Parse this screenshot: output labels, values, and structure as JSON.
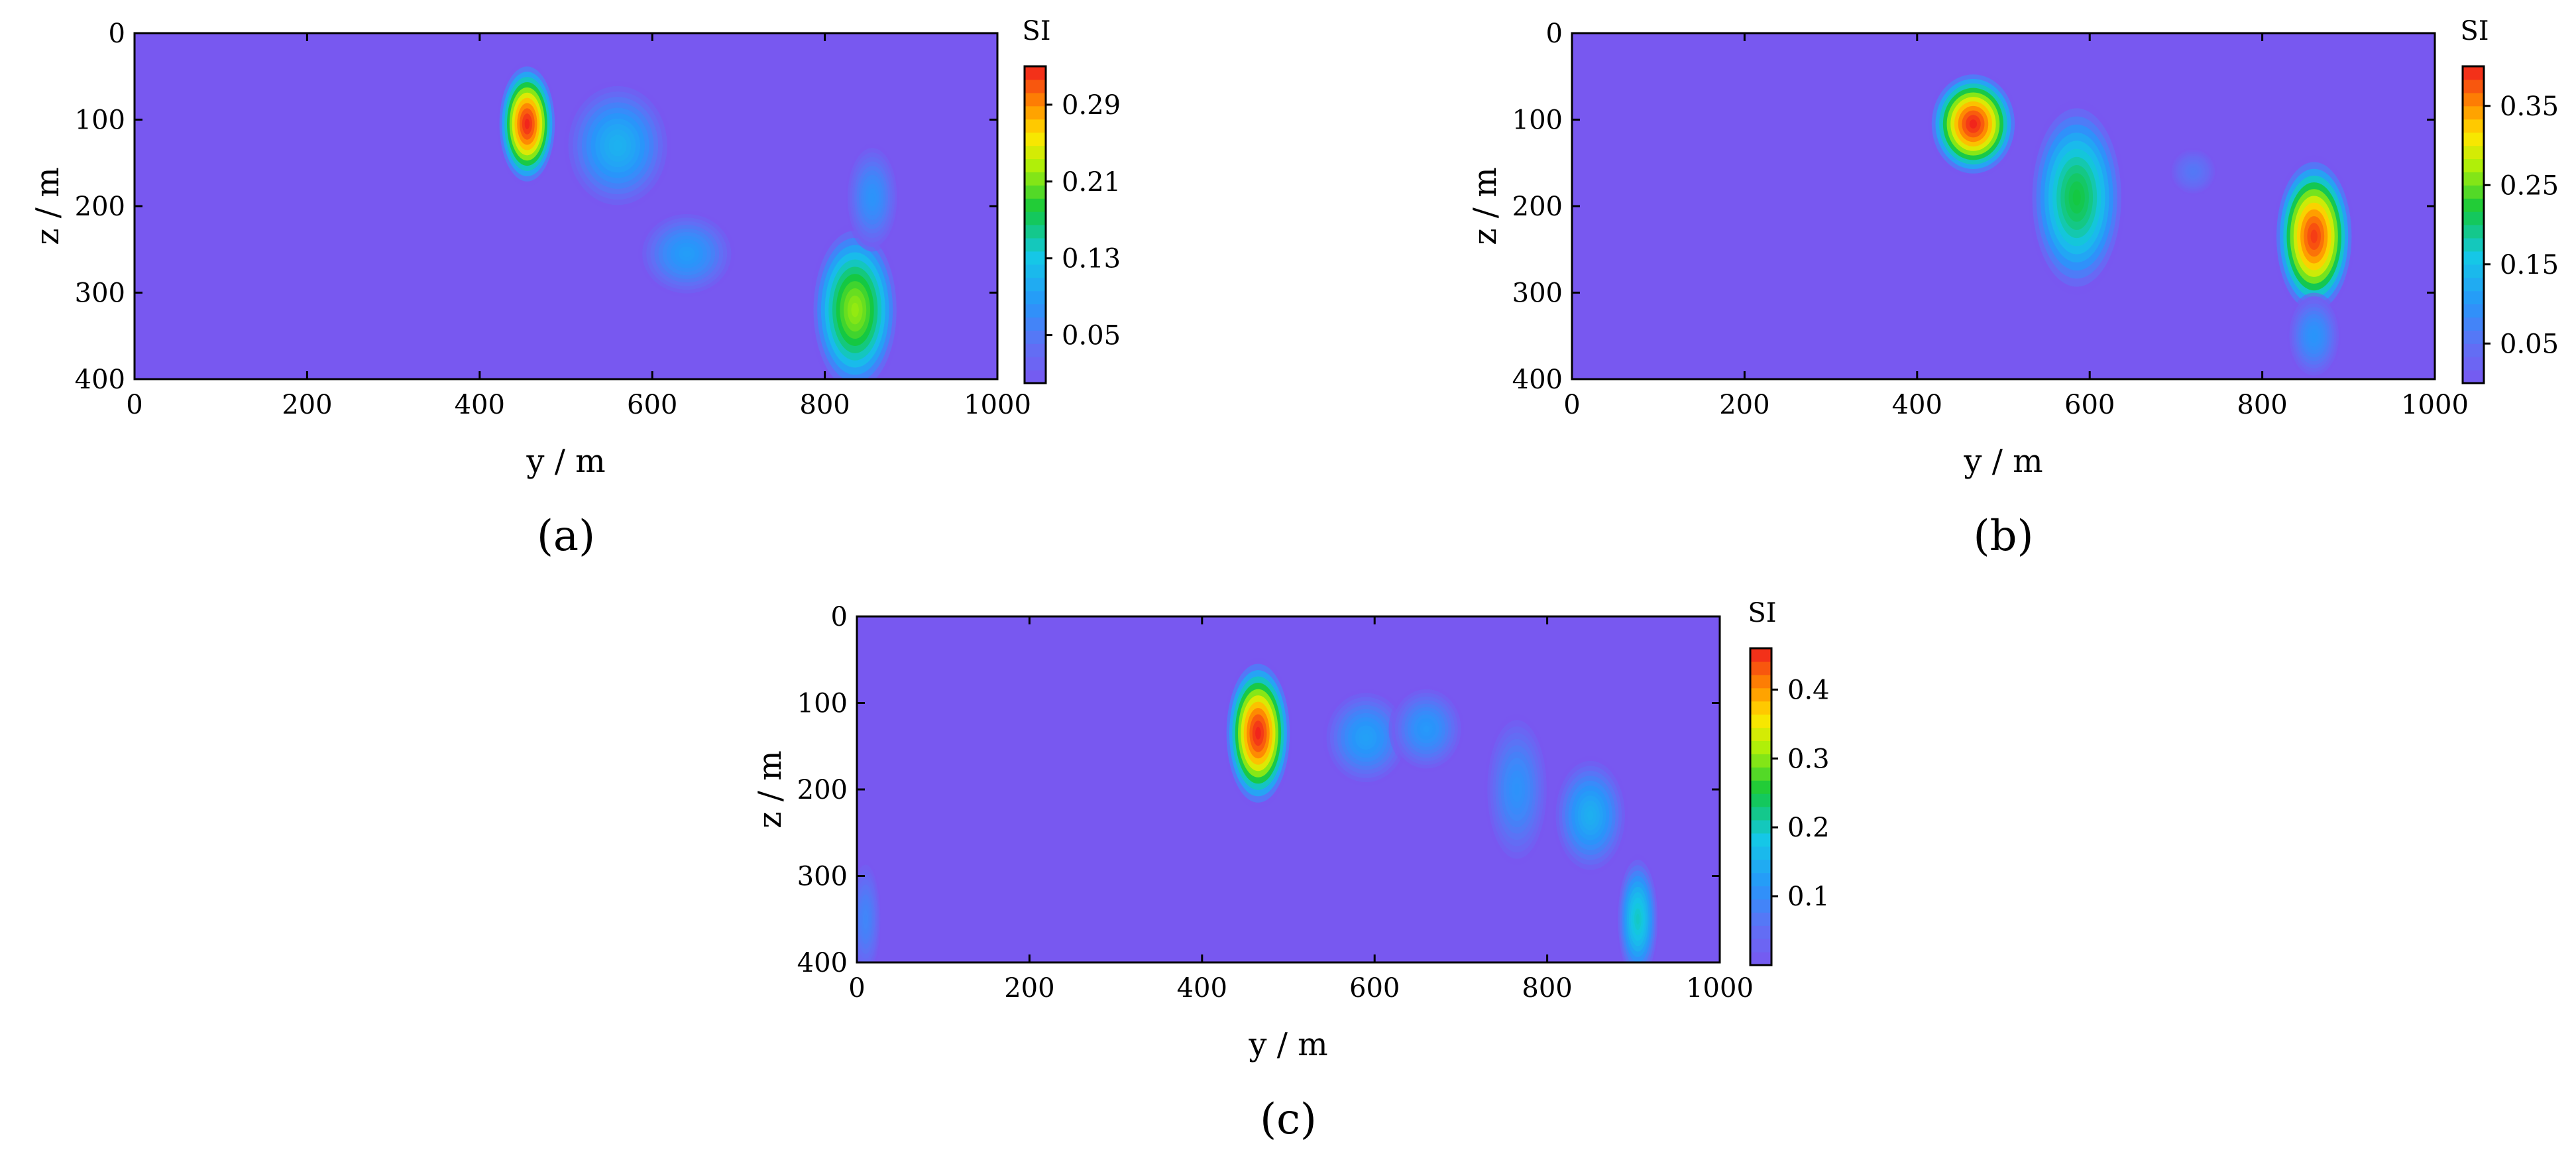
{
  "chart_data": [
    {
      "type": "heatmap",
      "panel_label": "(a)",
      "xlabel": "y / m",
      "ylabel": "z / m",
      "xlim": [
        0,
        1000
      ],
      "ylim": [
        0,
        400
      ],
      "y_inverted": true,
      "x_ticks": [
        "0",
        "200",
        "400",
        "600",
        "800",
        "1000"
      ],
      "y_ticks": [
        "0",
        "100",
        "200",
        "300",
        "400"
      ],
      "colorbar": {
        "unit": "SI",
        "range": [
          0,
          0.33
        ],
        "ticks": [
          0.05,
          0.13,
          0.21,
          0.29
        ],
        "tick_labels": [
          "0.05",
          "0.13",
          "0.21",
          "0.29"
        ]
      },
      "background_value": 0.0,
      "anomalies": [
        {
          "y": 455,
          "z": 105,
          "ry": 28,
          "rz": 58,
          "peak": 0.33
        },
        {
          "y": 560,
          "z": 130,
          "ry": 50,
          "rz": 60,
          "peak": 0.11
        },
        {
          "y": 640,
          "z": 255,
          "ry": 45,
          "rz": 40,
          "peak": 0.09
        },
        {
          "y": 835,
          "z": 320,
          "ry": 42,
          "rz": 80,
          "peak": 0.22
        },
        {
          "y": 855,
          "z": 190,
          "ry": 25,
          "rz": 50,
          "peak": 0.08
        }
      ],
      "grid": false
    },
    {
      "type": "heatmap",
      "panel_label": "(b)",
      "xlabel": "y / m",
      "ylabel": "z / m",
      "xlim": [
        0,
        1000
      ],
      "ylim": [
        0,
        400
      ],
      "y_inverted": true,
      "x_ticks": [
        "0",
        "200",
        "400",
        "600",
        "800",
        "1000"
      ],
      "y_ticks": [
        "0",
        "100",
        "200",
        "300",
        "400"
      ],
      "colorbar": {
        "unit": "SI",
        "range": [
          0,
          0.4
        ],
        "ticks": [
          0.05,
          0.15,
          0.25,
          0.35
        ],
        "tick_labels": [
          "0.05",
          "0.15",
          "0.25",
          "0.35"
        ]
      },
      "background_value": 0.0,
      "anomalies": [
        {
          "y": 465,
          "z": 105,
          "ry": 42,
          "rz": 50,
          "peak": 0.4
        },
        {
          "y": 585,
          "z": 190,
          "ry": 45,
          "rz": 90,
          "peak": 0.22
        },
        {
          "y": 720,
          "z": 160,
          "ry": 22,
          "rz": 22,
          "peak": 0.06
        },
        {
          "y": 860,
          "z": 235,
          "ry": 38,
          "rz": 75,
          "peak": 0.39
        },
        {
          "y": 860,
          "z": 350,
          "ry": 25,
          "rz": 40,
          "peak": 0.1
        }
      ],
      "grid": false
    },
    {
      "type": "heatmap",
      "panel_label": "(c)",
      "xlabel": "y / m",
      "ylabel": "z / m",
      "xlim": [
        0,
        1000
      ],
      "ylim": [
        0,
        400
      ],
      "y_inverted": true,
      "x_ticks": [
        "0",
        "200",
        "400",
        "600",
        "800",
        "1000"
      ],
      "y_ticks": [
        "0",
        "100",
        "200",
        "300",
        "400"
      ],
      "colorbar": {
        "unit": "SI",
        "range": [
          0,
          0.46
        ],
        "ticks": [
          0.1,
          0.2,
          0.3,
          0.4
        ],
        "tick_labels": [
          "0.1",
          "0.2",
          "0.3",
          "0.4"
        ]
      },
      "background_value": 0.0,
      "anomalies": [
        {
          "y": 465,
          "z": 135,
          "ry": 32,
          "rz": 70,
          "peak": 0.46
        },
        {
          "y": 590,
          "z": 140,
          "ry": 40,
          "rz": 45,
          "peak": 0.13
        },
        {
          "y": 660,
          "z": 130,
          "ry": 35,
          "rz": 40,
          "peak": 0.12
        },
        {
          "y": 765,
          "z": 200,
          "ry": 30,
          "rz": 70,
          "peak": 0.11
        },
        {
          "y": 850,
          "z": 230,
          "ry": 35,
          "rz": 55,
          "peak": 0.15
        },
        {
          "y": 905,
          "z": 350,
          "ry": 20,
          "rz": 60,
          "peak": 0.2
        },
        {
          "y": 10,
          "z": 350,
          "ry": 15,
          "rz": 55,
          "peak": 0.09
        }
      ],
      "grid": false
    }
  ]
}
